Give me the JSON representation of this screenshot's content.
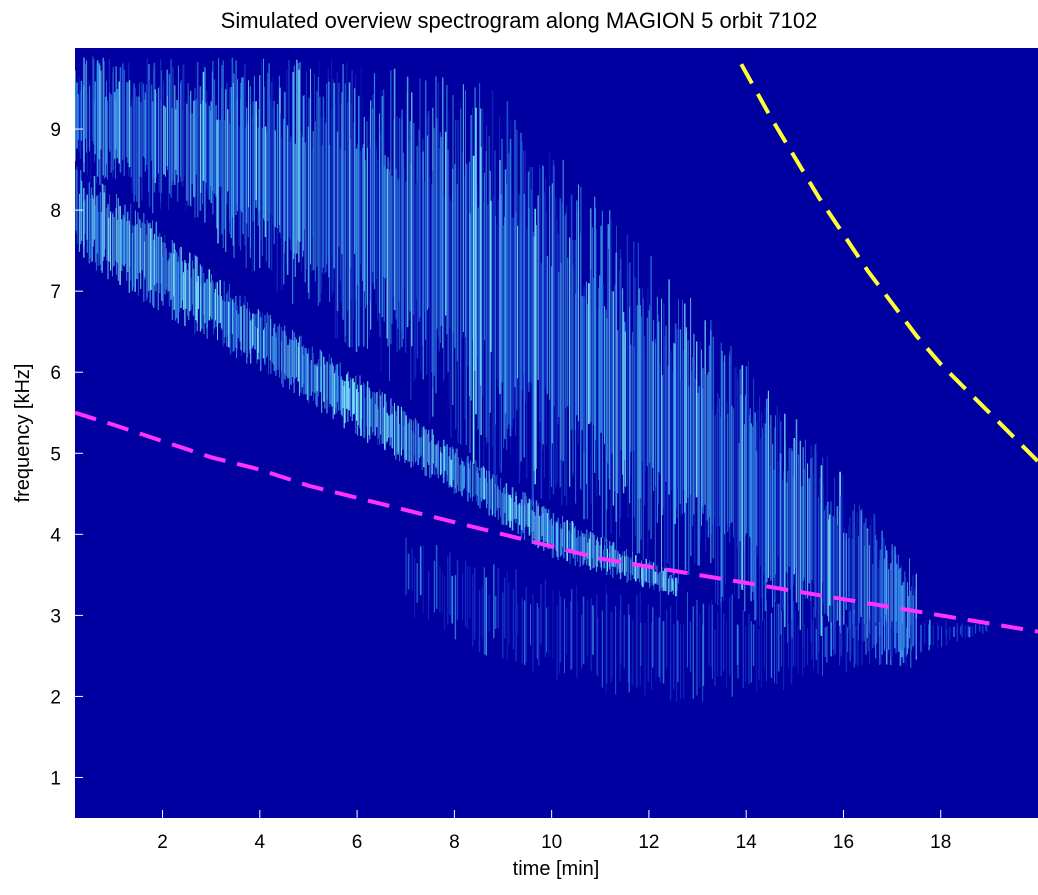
{
  "chart_data": {
    "type": "heatmap",
    "title": "Simulated overview spectrogram along MAGION 5 orbit 7102",
    "xlabel": "time [min]",
    "ylabel": "frequency [kHz]",
    "xlim": [
      0.2,
      20
    ],
    "ylim": [
      0.5,
      10
    ],
    "xticks": [
      2,
      4,
      6,
      8,
      10,
      12,
      14,
      16,
      18
    ],
    "yticks": [
      1,
      2,
      3,
      4,
      5,
      6,
      7,
      8,
      9
    ],
    "grid": false,
    "legend": "none",
    "colors": {
      "background": "#0000a0",
      "low_intensity": "#1a3cd0",
      "mid_intensity": "#3aa0f0",
      "high_intensity": "#7ff5ff",
      "lower_curve": "#ff33ff",
      "upper_curve": "#ffff33"
    },
    "emission_bands": [
      {
        "x": [
          0.2,
          3,
          6,
          9,
          12,
          15,
          17.5
        ],
        "y_top": [
          9.9,
          9.9,
          9.9,
          9.5,
          7.5,
          5.5,
          3.6
        ],
        "y_bottom": [
          8.4,
          7.6,
          6.2,
          4.5,
          3.5,
          2.6,
          2.3
        ],
        "intensity": "mid"
      },
      {
        "x": [
          0.2,
          2,
          4,
          6,
          8,
          10,
          12.6
        ],
        "y_top": [
          8.6,
          7.8,
          6.8,
          6.0,
          5.1,
          4.3,
          3.5
        ],
        "y_bottom": [
          7.4,
          6.7,
          6.0,
          5.2,
          4.5,
          3.7,
          3.2
        ],
        "intensity": "high"
      },
      {
        "x": [
          7,
          9,
          11,
          13,
          15,
          17,
          19
        ],
        "y_top": [
          4.0,
          3.6,
          3.4,
          3.3,
          3.2,
          3.0,
          2.9
        ],
        "y_bottom": [
          3.0,
          2.4,
          2.0,
          1.9,
          2.1,
          2.4,
          2.8
        ],
        "intensity": "low"
      }
    ],
    "series": [
      {
        "x": [
          0.2,
          1,
          2,
          3,
          4,
          5,
          6,
          7,
          8,
          9,
          10,
          11,
          12,
          13,
          14,
          15,
          16,
          17,
          18,
          19,
          20
        ],
        "y": [
          5.5,
          5.35,
          5.15,
          4.95,
          4.8,
          4.6,
          4.45,
          4.3,
          4.15,
          4.0,
          3.85,
          3.7,
          3.6,
          3.5,
          3.4,
          3.3,
          3.2,
          3.1,
          3.0,
          2.9,
          2.8
        ]
      },
      {
        "x": [
          13.9,
          14.5,
          15,
          15.5,
          16,
          16.5,
          17,
          17.5,
          18,
          18.5,
          19,
          19.5,
          20
        ],
        "y": [
          9.8,
          9.15,
          8.65,
          8.15,
          7.7,
          7.25,
          6.85,
          6.45,
          6.1,
          5.8,
          5.5,
          5.2,
          4.9
        ]
      }
    ]
  }
}
